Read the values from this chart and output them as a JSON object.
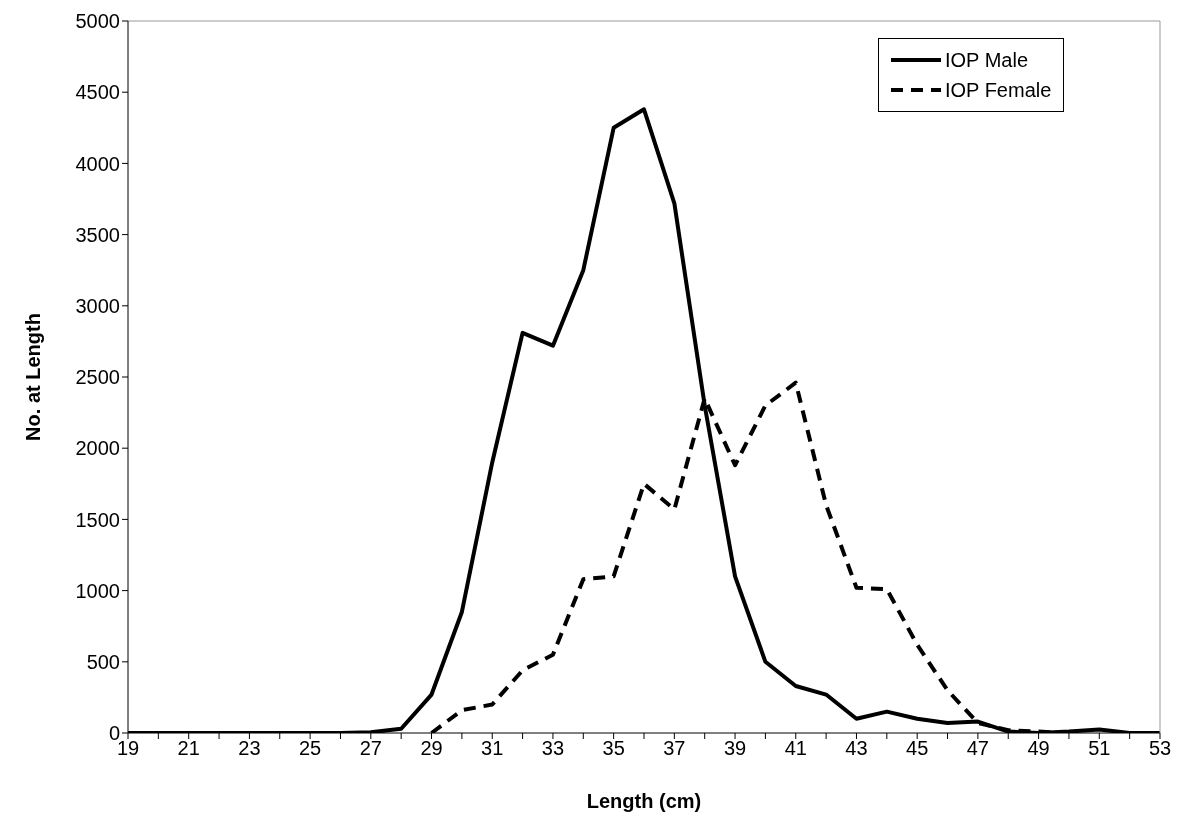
{
  "chart_data": {
    "type": "line",
    "xlabel": "Length (cm)",
    "ylabel": "No. at Length",
    "categories": [
      "19",
      null,
      "21",
      null,
      "23",
      null,
      "25",
      null,
      "27",
      null,
      "29",
      null,
      "31",
      null,
      "33",
      null,
      "35",
      null,
      "37",
      null,
      "39",
      null,
      "41",
      null,
      "43",
      null,
      "45",
      null,
      "47",
      null,
      "49",
      null,
      "51",
      null,
      "53"
    ],
    "series": [
      {
        "name": "IOP Male",
        "color": "#000000",
        "line_style": "solid",
        "values": [
          0,
          0,
          0,
          0,
          0,
          0,
          0,
          0,
          5,
          30,
          270,
          850,
          1900,
          2810,
          2720,
          3250,
          4250,
          4380,
          3720,
          2300,
          1100,
          500,
          330,
          270,
          100,
          150,
          100,
          70,
          80,
          10,
          0,
          10,
          25,
          0,
          0
        ]
      },
      {
        "name": "IOP Female",
        "color": "#000000",
        "line_style": "dashed",
        "values": [
          null,
          null,
          null,
          null,
          null,
          null,
          null,
          null,
          null,
          null,
          0,
          160,
          200,
          440,
          550,
          1080,
          1100,
          1750,
          1570,
          2350,
          1880,
          2300,
          2460,
          1600,
          1020,
          1010,
          620,
          300,
          70,
          20,
          10,
          0,
          null,
          null,
          null
        ]
      }
    ],
    "ylim": [
      0,
      5000
    ],
    "yticks": [
      0,
      500,
      1000,
      1500,
      2000,
      2500,
      3000,
      3500,
      4000,
      4500,
      5000
    ],
    "legend": "top right",
    "marker": "none"
  }
}
